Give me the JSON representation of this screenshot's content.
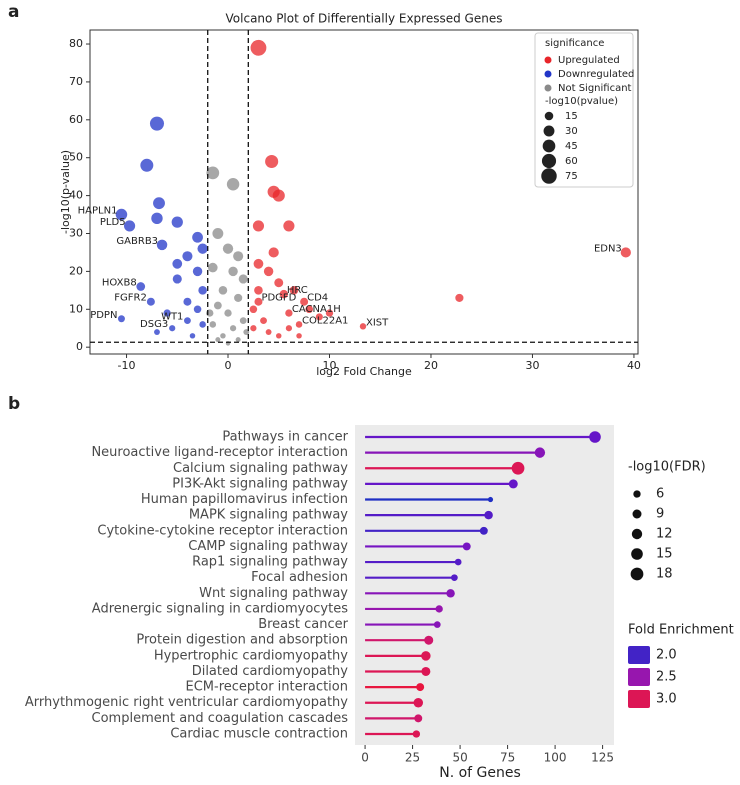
{
  "chart_data": [
    {
      "type": "scatter",
      "panel_label": "a",
      "title": "Volcano Plot of Differentially Expressed Genes",
      "xlabel": "log2 Fold Change",
      "ylabel": "-log10(p-value)",
      "xlim": [
        -13.6,
        40.4
      ],
      "ylim": [
        -1.8,
        83.7
      ],
      "xticks": [
        -10,
        0,
        10,
        20,
        30,
        40
      ],
      "yticks": [
        0,
        10,
        20,
        30,
        40,
        50,
        60,
        70,
        80
      ],
      "thresholds": {
        "x": [
          -2,
          2
        ],
        "y": 1.3
      },
      "legend_title": "significance",
      "size_legend": {
        "title": "-log10(pvalue)",
        "values": [
          15,
          30,
          45,
          60,
          75
        ]
      },
      "series": [
        {
          "name": "Upregulated",
          "color": "#e8252a",
          "x": [
            3,
            4.3,
            4.5,
            5,
            6,
            3,
            39.2,
            22.8,
            13.3,
            5.5,
            7.5,
            3,
            6,
            7,
            5,
            6.5,
            4,
            3,
            8,
            9,
            3.5,
            2.5,
            4,
            5,
            3,
            6,
            10,
            2.5,
            4.5,
            7
          ],
          "values": [
            79,
            49,
            41,
            40,
            32,
            32,
            25,
            13,
            5.5,
            14,
            12,
            12,
            9,
            6,
            17,
            15,
            20,
            22,
            10,
            8,
            7,
            5,
            4,
            3,
            15,
            5,
            9,
            10,
            25,
            3
          ],
          "labels": [
            null,
            null,
            null,
            null,
            null,
            null,
            "EDN3",
            null,
            "XIST",
            "HRC",
            "CD4",
            "PDGFD",
            "CACNA1H",
            "COL22A1",
            null,
            null,
            null,
            null,
            null,
            null,
            null,
            null,
            null,
            null,
            null,
            null,
            null,
            null,
            null,
            null
          ]
        },
        {
          "name": "Downregulated",
          "color": "#2236c8",
          "x": [
            -7,
            -8,
            -10.5,
            -9.7,
            -6.8,
            -7,
            -5,
            -6.5,
            -8.6,
            -7.6,
            -10.5,
            -4,
            -5.5,
            -3,
            -2.5,
            -4,
            -3,
            -5,
            -2.5,
            -4,
            -6,
            -3,
            -2.5,
            -7,
            -3.5,
            -5
          ],
          "values": [
            59,
            48,
            35,
            32,
            38,
            34,
            33,
            27,
            16,
            12,
            7.5,
            7,
            5,
            29,
            26,
            24,
            20,
            18,
            15,
            12,
            9,
            10,
            6,
            4,
            3,
            22
          ],
          "labels": [
            null,
            null,
            "HAPLN1",
            "PLD5",
            null,
            null,
            null,
            "GABRB3",
            "HOXB8",
            "FGFR2",
            "PDPN",
            "WT1",
            "DSG3",
            null,
            null,
            null,
            null,
            null,
            null,
            null,
            null,
            null,
            null,
            null,
            null,
            null
          ]
        },
        {
          "name": "Not Significant",
          "color": "#8a8a8a",
          "x": [
            -1.5,
            0.5,
            -1,
            0,
            1,
            -1.5,
            0.5,
            1.5,
            -0.5,
            1,
            -1,
            0,
            1.5,
            -1.5,
            0.5,
            -0.5,
            1,
            0,
            -1,
            1.8,
            -1.8
          ],
          "values": [
            46,
            43,
            30,
            26,
            24,
            21,
            20,
            18,
            15,
            13,
            11,
            9,
            7,
            6,
            5,
            3,
            2,
            1,
            2,
            4,
            9
          ],
          "labels": [
            null,
            null,
            null,
            null,
            null,
            null,
            null,
            null,
            null,
            null,
            null,
            null,
            null,
            null,
            null,
            null,
            null,
            null,
            null,
            null,
            null
          ]
        }
      ]
    },
    {
      "type": "lollipop",
      "panel_label": "b",
      "xlabel": "N. of Genes",
      "xlim": [
        -5.3,
        131
      ],
      "xticks": [
        0,
        25,
        50,
        75,
        100,
        125
      ],
      "categories": [
        "Pathways in cancer",
        "Neuroactive ligand-receptor interaction",
        "Calcium signaling pathway",
        "PI3K-Akt signaling pathway",
        "Human papillomavirus infection",
        "MAPK signaling pathway",
        "Cytokine-cytokine receptor interaction",
        "CAMP signaling pathway",
        "Rap1 signaling pathway",
        "Focal adhesion",
        "Wnt signaling pathway",
        "Adrenergic signaling in cardiomyocytes",
        "Breast cancer",
        "Protein digestion and absorption",
        "Hypertrophic cardiomyopathy",
        "Dilated cardiomyopathy",
        "ECM-receptor interaction",
        "Arrhythmogenic right ventricular cardiomyopathy",
        "Complement and coagulation cascades",
        "Cardiac muscle contraction"
      ],
      "values": [
        121,
        92,
        80.5,
        78,
        66,
        65,
        62.5,
        53.5,
        49,
        47,
        45,
        39,
        38,
        33.5,
        32,
        32,
        29,
        28,
        28,
        27
      ],
      "sizes": [
        15,
        12,
        18,
        9,
        3,
        8,
        7,
        7,
        5,
        5,
        8,
        6,
        5,
        9,
        10,
        9,
        7,
        10,
        7,
        6
      ],
      "fold_enrichment": [
        2.2,
        2.4,
        3.0,
        2.2,
        1.8,
        2.1,
        2.0,
        2.3,
        2.1,
        2.1,
        2.4,
        2.5,
        2.4,
        2.9,
        3.0,
        3.0,
        3.1,
        3.0,
        2.9,
        3.0
      ],
      "size_legend": {
        "title": "-log10(FDR)",
        "values": [
          6,
          9,
          12,
          15,
          18
        ]
      },
      "color_legend": {
        "title": "Fold Enrichment",
        "ticks": [
          {
            "value": 2,
            "label": "2.0"
          },
          2.5,
          {
            "value": 3,
            "label": "3.0"
          }
        ]
      },
      "colormap": [
        "#1f2fc4",
        "#6b14c8",
        "#b3179e",
        "#e8163f"
      ],
      "clim": [
        1.8,
        3.1
      ]
    }
  ]
}
